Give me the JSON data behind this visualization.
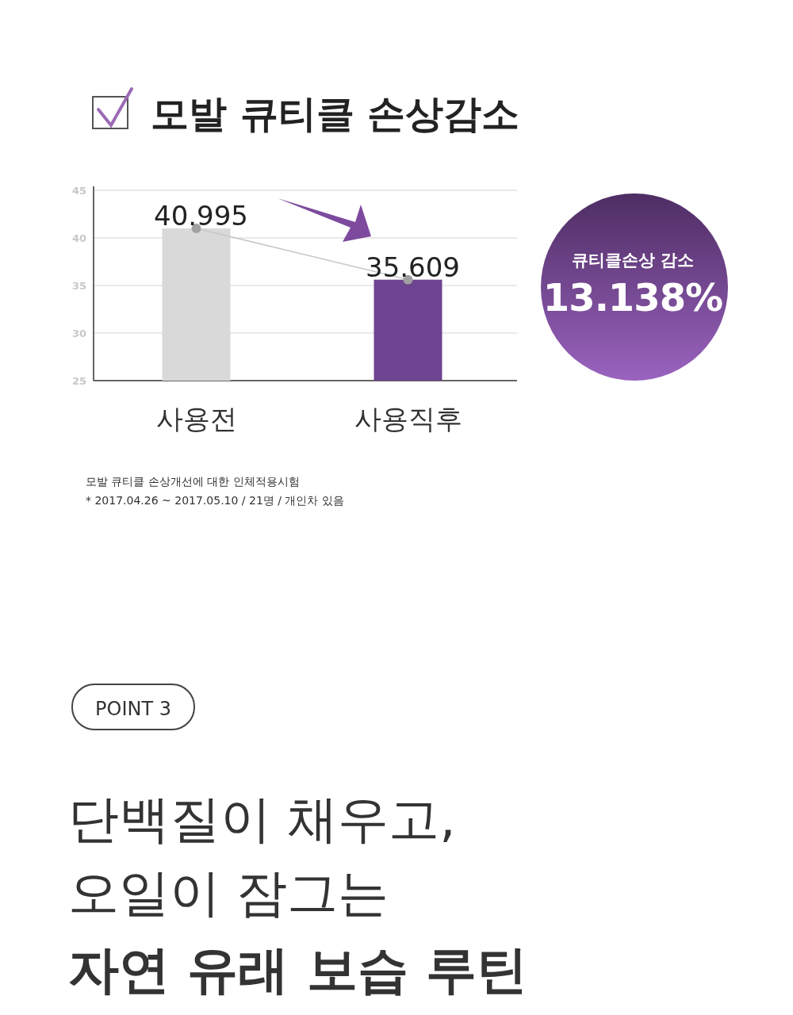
{
  "chart_data": {
    "type": "bar",
    "title": "모발 큐티클 손상감소",
    "categories": [
      "사용전",
      "사용직후"
    ],
    "series": [
      {
        "type": "bar",
        "colors": [
          "#d9d9d9",
          "#6e4490"
        ],
        "values": [
          40.995,
          35.609
        ]
      },
      {
        "type": "line",
        "color": "#c8c8c8",
        "marker": "circle",
        "values": [
          40.995,
          35.609
        ],
        "value_labels": [
          "40.995",
          "35.609"
        ]
      }
    ],
    "ylim": [
      25,
      45
    ],
    "yticks": [
      25,
      30,
      35,
      40,
      45
    ],
    "grid": "y",
    "annotations": [
      "큐티클손상 감소",
      "13.138%",
      "모발 큐티클 손상개선에 대한 인체적용시험",
      "* 2017.04.26 ~ 2017.05.10  / 21명 / 개인차 있음",
      "POINT 3",
      "단백질이 채우고,",
      "오일이 잠그는",
      "자연 유래 보습 루틴"
    ]
  }
}
